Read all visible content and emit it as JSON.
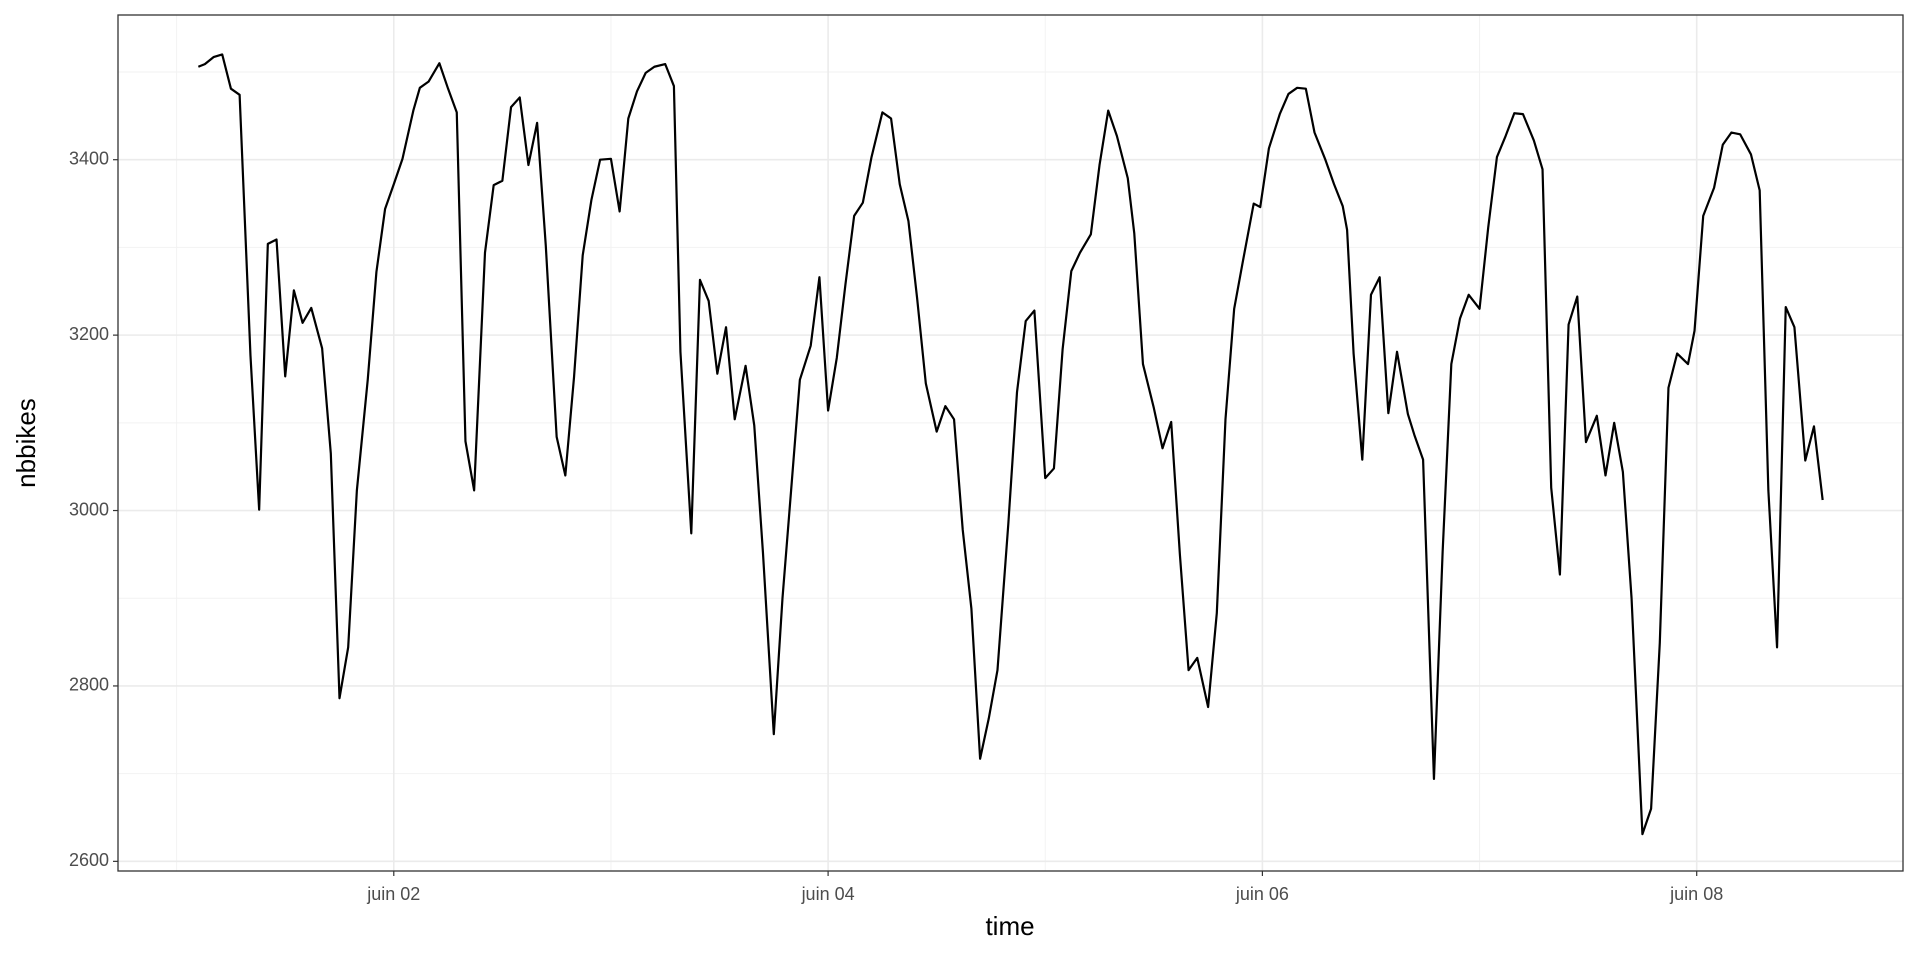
{
  "chart_data": {
    "type": "line",
    "x_label": "time",
    "y_label": "nbbikes",
    "x": [
      1.1,
      1.13,
      1.17,
      1.21,
      1.25,
      1.29,
      1.34,
      1.38,
      1.42,
      1.46,
      1.5,
      1.54,
      1.58,
      1.62,
      1.67,
      1.71,
      1.75,
      1.79,
      1.83,
      1.88,
      1.92,
      1.96,
      2.0,
      2.04,
      2.09,
      2.12,
      2.16,
      2.21,
      2.25,
      2.29,
      2.33,
      2.37,
      2.42,
      2.46,
      2.5,
      2.54,
      2.58,
      2.62,
      2.66,
      2.7,
      2.75,
      2.79,
      2.83,
      2.87,
      2.91,
      2.95,
      3.0,
      3.04,
      3.08,
      3.12,
      3.16,
      3.2,
      3.25,
      3.29,
      3.32,
      3.37,
      3.41,
      3.45,
      3.49,
      3.53,
      3.57,
      3.62,
      3.66,
      3.7,
      3.75,
      3.79,
      3.83,
      3.87,
      3.92,
      3.96,
      4.0,
      4.04,
      4.08,
      4.12,
      4.16,
      4.2,
      4.25,
      4.29,
      4.33,
      4.37,
      4.41,
      4.45,
      4.5,
      4.54,
      4.58,
      4.62,
      4.66,
      4.7,
      4.74,
      4.78,
      4.83,
      4.87,
      4.91,
      4.95,
      5.0,
      5.04,
      5.08,
      5.12,
      5.16,
      5.21,
      5.25,
      5.29,
      5.33,
      5.38,
      5.41,
      5.45,
      5.5,
      5.54,
      5.58,
      5.62,
      5.66,
      5.7,
      5.75,
      5.79,
      5.83,
      5.87,
      5.91,
      5.96,
      5.99,
      6.03,
      6.08,
      6.12,
      6.16,
      6.2,
      6.24,
      6.29,
      6.33,
      6.37,
      6.39,
      6.42,
      6.46,
      6.5,
      6.54,
      6.58,
      6.62,
      6.67,
      6.7,
      6.74,
      6.79,
      6.83,
      6.87,
      6.91,
      6.95,
      7.0,
      7.04,
      7.08,
      7.12,
      7.16,
      7.2,
      7.25,
      7.29,
      7.33,
      7.37,
      7.41,
      7.45,
      7.49,
      7.54,
      7.58,
      7.62,
      7.66,
      7.7,
      7.75,
      7.79,
      7.83,
      7.87,
      7.91,
      7.96,
      7.99,
      8.03,
      8.08,
      8.12,
      8.16,
      8.2,
      8.25,
      8.29,
      8.33,
      8.37,
      8.41,
      8.45,
      8.5,
      8.54,
      8.58
    ],
    "values": [
      3506,
      3509,
      3517,
      3520,
      3481,
      3474,
      3177,
      3001,
      3304,
      3309,
      3153,
      3251,
      3214,
      3231,
      3185,
      3065,
      2786,
      2844,
      3023,
      3149,
      3272,
      3344,
      3372,
      3401,
      3456,
      3482,
      3489,
      3510,
      3481,
      3454,
      3079,
      3023,
      3294,
      3371,
      3376,
      3460,
      3471,
      3394,
      3442,
      3302,
      3084,
      3040,
      3152,
      3291,
      3354,
      3400,
      3401,
      3341,
      3447,
      3478,
      3499,
      3506,
      3509,
      3484,
      3181,
      2974,
      3263,
      3239,
      3156,
      3209,
      3104,
      3165,
      3097,
      2952,
      2745,
      2900,
      3024,
      3149,
      3188,
      3266,
      3114,
      3174,
      3258,
      3336,
      3351,
      3403,
      3454,
      3447,
      3372,
      3330,
      3242,
      3145,
      3090,
      3119,
      3104,
      2978,
      2888,
      2717,
      2763,
      2818,
      2985,
      3135,
      3216,
      3228,
      3037,
      3048,
      3184,
      3273,
      3294,
      3315,
      3394,
      3456,
      3427,
      3379,
      3316,
      3167,
      3117,
      3071,
      3101,
      2950,
      2818,
      2832,
      2776,
      2883,
      3104,
      3230,
      3284,
      3350,
      3346,
      3413,
      3452,
      3475,
      3482,
      3481,
      3431,
      3400,
      3372,
      3347,
      3320,
      3179,
      3058,
      3246,
      3266,
      3111,
      3181,
      3110,
      3086,
      3058,
      2694,
      2953,
      3167,
      3219,
      3246,
      3230,
      3323,
      3403,
      3427,
      3453,
      3452,
      3422,
      3389,
      3026,
      2927,
      3212,
      3244,
      3078,
      3108,
      3040,
      3100,
      3044,
      2900,
      2631,
      2660,
      2849,
      3140,
      3179,
      3167,
      3205,
      3336,
      3368,
      3417,
      3431,
      3429,
      3406,
      3365,
      3023,
      2844,
      3232,
      3209,
      3057,
      3096,
      3012
    ],
    "color": "#000000",
    "xlim": [
      0.73,
      8.95
    ],
    "xticks": [
      {
        "value": 2,
        "label": "juin 02"
      },
      {
        "value": 4,
        "label": "juin 04"
      },
      {
        "value": 6,
        "label": "juin 06"
      },
      {
        "value": 8,
        "label": "juin 08"
      }
    ],
    "x_minor_ticks": [
      1,
      3,
      5,
      7
    ],
    "ylim": [
      2589,
      3565
    ],
    "yticks": [
      2600,
      2800,
      3000,
      3200,
      3400
    ],
    "y_minor_ticks": [
      2700,
      2900,
      3100,
      3300,
      3500
    ],
    "grid": true
  }
}
